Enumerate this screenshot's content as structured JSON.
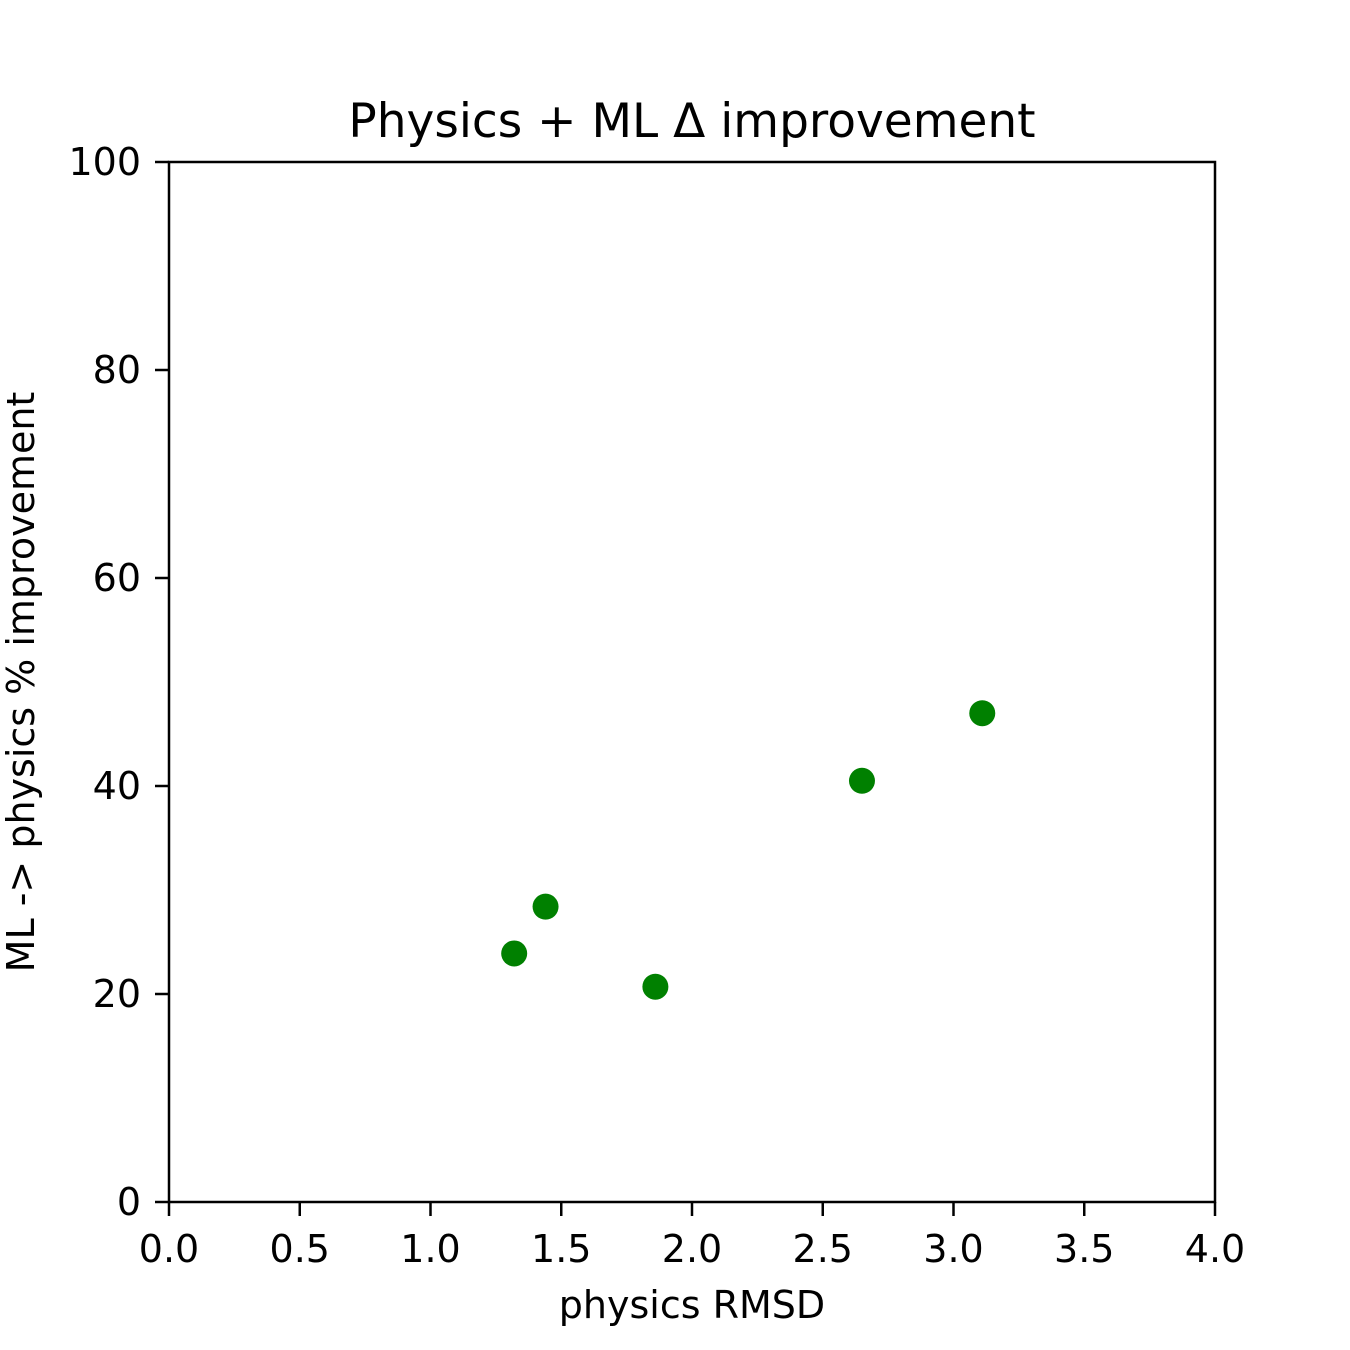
{
  "chart_data": {
    "type": "scatter",
    "title": "Physics + ML Δ improvement",
    "xlabel": "physics RMSD",
    "ylabel": "ML -> physics % improvement",
    "xlim": [
      0.0,
      4.0
    ],
    "ylim": [
      0,
      100
    ],
    "xticks": [
      "0.0",
      "0.5",
      "1.0",
      "1.5",
      "2.0",
      "2.5",
      "3.0",
      "3.5",
      "4.0"
    ],
    "yticks": [
      "0",
      "20",
      "40",
      "60",
      "80",
      "100"
    ],
    "grid": false,
    "legend": "none",
    "marker_color": "#008000",
    "series": [
      {
        "points": [
          {
            "x": 1.32,
            "y": 23.9
          },
          {
            "x": 1.44,
            "y": 28.4
          },
          {
            "x": 1.86,
            "y": 20.7
          },
          {
            "x": 2.65,
            "y": 40.5
          },
          {
            "x": 3.11,
            "y": 47.0
          }
        ]
      }
    ]
  }
}
